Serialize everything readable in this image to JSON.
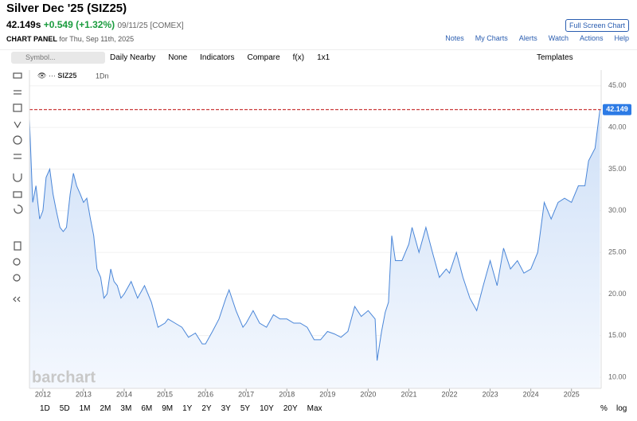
{
  "header": {
    "title": "Silver Dec '25 (SIZ25)",
    "price": "42.149s",
    "change": "+0.549 (+1.32%)",
    "date_exchange": "09/11/25 [COMEX]",
    "panel_label": "CHART PANEL",
    "panel_date": "for Thu, Sep 11th, 2025",
    "fullscreen": "Full Screen Chart",
    "links": [
      "Notes",
      "My Charts",
      "Alerts",
      "Watch",
      "Actions",
      "Help"
    ]
  },
  "toolbar": {
    "search": "Symbol...",
    "items": [
      "Daily Nearby",
      "None",
      "Indicators",
      "Compare",
      "f(x)",
      "1x1"
    ],
    "templates": "Templates"
  },
  "footer": {
    "ranges": [
      "1D",
      "5D",
      "1M",
      "2M",
      "3M",
      "6M",
      "9M",
      "1Y",
      "2Y",
      "3Y",
      "5Y",
      "10Y",
      "20Y",
      "Max"
    ],
    "percent": "%",
    "log": "log"
  },
  "watermark": "barchart",
  "chart_data": {
    "type": "line",
    "symbol": "SIZ25",
    "interval": "1Dn",
    "last_price": 42.149,
    "xlim": [
      2011.67,
      2025.73
    ],
    "xticks": [
      2012,
      2013,
      2014,
      2015,
      2016,
      2017,
      2018,
      2019,
      2020,
      2021,
      2022,
      2023,
      2024,
      2025
    ],
    "ylim": [
      8.66,
      46.9
    ],
    "yticks": [
      {
        "value": 10,
        "label": "10.00"
      },
      {
        "value": 15,
        "label": "15.00"
      },
      {
        "value": 20,
        "label": "20.00"
      },
      {
        "value": 25,
        "label": "25.00"
      },
      {
        "value": 30,
        "label": "30.00"
      },
      {
        "value": 35,
        "label": "35.00"
      },
      {
        "value": 40,
        "label": "40.00"
      },
      {
        "value": 45,
        "label": "45.00"
      }
    ],
    "series": [
      {
        "name": "SIZ25",
        "color": "#4a86d8",
        "x": [
          2011.67,
          2011.75,
          2011.83,
          2011.92,
          2012.0,
          2012.08,
          2012.17,
          2012.25,
          2012.33,
          2012.42,
          2012.5,
          2012.58,
          2012.67,
          2012.75,
          2012.83,
          2012.92,
          2013.0,
          2013.08,
          2013.17,
          2013.25,
          2013.33,
          2013.42,
          2013.5,
          2013.58,
          2013.67,
          2013.75,
          2013.83,
          2013.92,
          2014.0,
          2014.17,
          2014.33,
          2014.5,
          2014.67,
          2014.83,
          2015.0,
          2015.08,
          2015.25,
          2015.42,
          2015.58,
          2015.75,
          2015.92,
          2016.0,
          2016.17,
          2016.33,
          2016.5,
          2016.58,
          2016.75,
          2016.92,
          2017.0,
          2017.17,
          2017.33,
          2017.5,
          2017.67,
          2017.83,
          2018.0,
          2018.17,
          2018.33,
          2018.5,
          2018.67,
          2018.83,
          2019.0,
          2019.17,
          2019.33,
          2019.5,
          2019.67,
          2019.83,
          2020.0,
          2020.17,
          2020.22,
          2020.33,
          2020.42,
          2020.5,
          2020.58,
          2020.67,
          2020.83,
          2021.0,
          2021.08,
          2021.25,
          2021.42,
          2021.58,
          2021.75,
          2021.92,
          2022.0,
          2022.17,
          2022.33,
          2022.5,
          2022.67,
          2022.83,
          2023.0,
          2023.17,
          2023.33,
          2023.5,
          2023.67,
          2023.83,
          2024.0,
          2024.17,
          2024.33,
          2024.5,
          2024.67,
          2024.83,
          2025.0,
          2025.17,
          2025.33,
          2025.42,
          2025.58,
          2025.67,
          2025.7
        ],
        "values": [
          41,
          31,
          33,
          29,
          30,
          34,
          35,
          32,
          30,
          28,
          27.5,
          28,
          32,
          34.5,
          33,
          32,
          31,
          31.5,
          29,
          27,
          23,
          22,
          19.5,
          20,
          23,
          21.5,
          21,
          19.5,
          20,
          21.5,
          19.5,
          21,
          19,
          16,
          16.5,
          17,
          16.5,
          16,
          14.8,
          15.3,
          14,
          14,
          15.5,
          17,
          19.5,
          20.5,
          18,
          16,
          16.5,
          18,
          16.5,
          16,
          17.5,
          17,
          17,
          16.5,
          16.5,
          16,
          14.5,
          14.5,
          15.5,
          15.2,
          14.8,
          15.5,
          18.5,
          17.3,
          18,
          17,
          12,
          15.5,
          17.8,
          19,
          27,
          24,
          24,
          26,
          28,
          25,
          28,
          25,
          22,
          23,
          22.5,
          25,
          22,
          19.5,
          18,
          21,
          24,
          21,
          25.5,
          23,
          24,
          22.5,
          23,
          25,
          31,
          29,
          31,
          31.5,
          31,
          33,
          33,
          36,
          37.5,
          41,
          42.149
        ]
      }
    ]
  }
}
